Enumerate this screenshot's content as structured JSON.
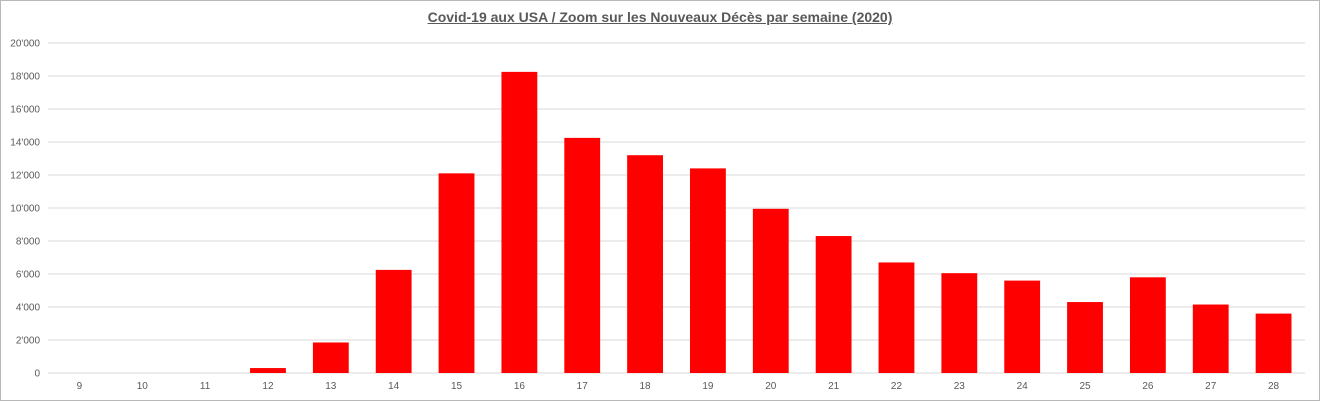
{
  "chart_data": {
    "type": "bar",
    "title": "Covid-19 aux USA / Zoom  sur les Nouveaux Décès par semaine (2020)",
    "xlabel": "",
    "ylabel": "",
    "categories": [
      "9",
      "10",
      "11",
      "12",
      "13",
      "14",
      "15",
      "16",
      "17",
      "18",
      "19",
      "20",
      "21",
      "22",
      "23",
      "24",
      "25",
      "26",
      "27",
      "28"
    ],
    "values": [
      0,
      0,
      0,
      300,
      1850,
      6250,
      12100,
      18250,
      14250,
      13200,
      12400,
      9950,
      8300,
      6700,
      6050,
      5600,
      4300,
      5800,
      4150,
      3600
    ],
    "ylim": [
      0,
      20000
    ],
    "yticks": [
      0,
      2000,
      4000,
      6000,
      8000,
      10000,
      12000,
      14000,
      16000,
      18000,
      20000
    ],
    "ytick_labels": [
      "0",
      "2'000",
      "4'000",
      "6'000",
      "8'000",
      "10'000",
      "12'000",
      "14'000",
      "16'000",
      "18'000",
      "20'000"
    ],
    "grid": true,
    "legend": "none",
    "bar_color": "#ff0000",
    "grid_color": "#d9d9d9",
    "text_color": "#595959"
  }
}
